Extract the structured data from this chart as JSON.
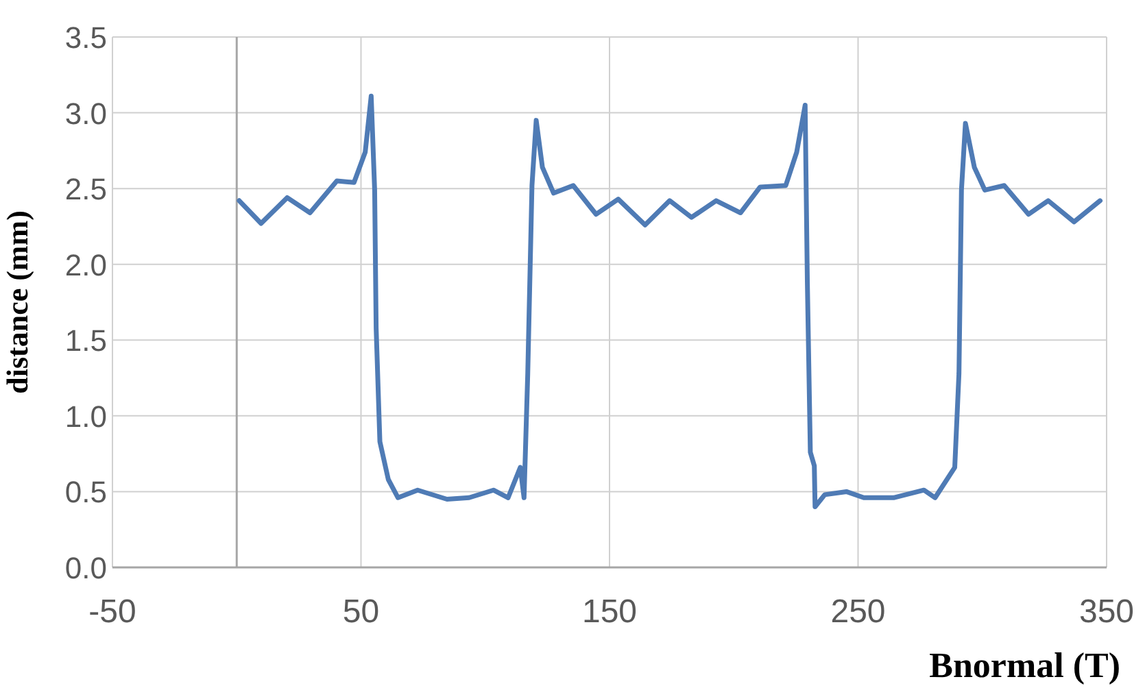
{
  "chart_data": {
    "type": "line",
    "xlabel": "Bnormal (T)",
    "ylabel": "distance (mm)",
    "xlim": [
      -50,
      350
    ],
    "xticks": [
      -50,
      50,
      150,
      250,
      350
    ],
    "ylim": [
      0,
      3.5
    ],
    "yticks": [
      {
        "value": 0,
        "label": "0.0"
      },
      {
        "value": 0.5,
        "label": "0.5"
      },
      {
        "value": 1,
        "label": "1.0"
      },
      {
        "value": 1.5,
        "label": "1.5"
      },
      {
        "value": 2,
        "label": "2.0"
      },
      {
        "value": 2.5,
        "label": "2.5"
      },
      {
        "value": 3,
        "label": "3.0"
      },
      {
        "value": 3.5,
        "label": "3.5"
      }
    ],
    "grid": true,
    "marker": "none",
    "line_style": "solid",
    "series": [
      {
        "color": "#4f7bb5",
        "x": [
          1,
          9.8,
          20.3,
          29.5,
          40.3,
          47.2,
          51.7,
          54.1,
          55.5,
          56.1,
          57.6,
          61,
          64.9,
          72.8,
          84.6,
          93.5,
          103.3,
          109.2,
          114.1,
          115.6,
          117.1,
          118.8,
          120.5,
          123,
          127.5,
          135.4,
          144.6,
          153.5,
          164.3,
          174.2,
          183,
          192.9,
          202.7,
          210.6,
          220.9,
          225.3,
          228.7,
          229.6,
          230.8,
          232.4,
          232.7,
          236.6,
          245.3,
          252.3,
          264.3,
          276.5,
          281,
          288.9,
          290.6,
          291.6,
          293.2,
          296.8,
          301,
          308.8,
          318.6,
          326.5,
          336.9,
          347.4
        ],
        "values": [
          2.42,
          2.27,
          2.44,
          2.34,
          2.55,
          2.54,
          2.74,
          3.11,
          2.49,
          1.58,
          0.83,
          0.58,
          0.46,
          0.51,
          0.45,
          0.46,
          0.51,
          0.46,
          0.66,
          0.46,
          1.28,
          2.52,
          2.95,
          2.64,
          2.47,
          2.52,
          2.33,
          2.43,
          2.26,
          2.42,
          2.31,
          2.42,
          2.34,
          2.51,
          2.52,
          2.74,
          3.05,
          1.88,
          0.76,
          0.67,
          0.4,
          0.48,
          0.5,
          0.46,
          0.46,
          0.51,
          0.46,
          0.66,
          1.28,
          2.49,
          2.93,
          2.64,
          2.49,
          2.52,
          2.33,
          2.42,
          2.28,
          2.42
        ]
      }
    ]
  }
}
